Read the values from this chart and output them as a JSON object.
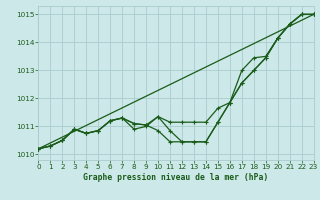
{
  "title": "Graphe pression niveau de la mer (hPa)",
  "bg_color": "#cce8e8",
  "grid_color": "#aacccc",
  "line_color": "#1a5c1a",
  "xlim": [
    0,
    23
  ],
  "ylim": [
    1009.8,
    1015.3
  ],
  "yticks": [
    1010,
    1011,
    1012,
    1013,
    1014,
    1015
  ],
  "xticks": [
    0,
    1,
    2,
    3,
    4,
    5,
    6,
    7,
    8,
    9,
    10,
    11,
    12,
    13,
    14,
    15,
    16,
    17,
    18,
    19,
    20,
    21,
    22,
    23
  ],
  "straight_line_x": [
    0,
    23
  ],
  "straight_line_y": [
    1010.2,
    1015.0
  ],
  "line_a_x": [
    0,
    1,
    2,
    3,
    4,
    5,
    6,
    7,
    8,
    9,
    10,
    11,
    12,
    13,
    14,
    15,
    16,
    17,
    18,
    19,
    20,
    21,
    22,
    23
  ],
  "line_a_y": [
    1010.2,
    1010.3,
    1010.5,
    1010.9,
    1010.75,
    1010.85,
    1011.2,
    1011.3,
    1011.1,
    1011.05,
    1011.35,
    1011.15,
    1011.15,
    1011.15,
    1011.15,
    1011.65,
    1011.85,
    1012.55,
    1013.0,
    1013.45,
    1014.15,
    1014.65,
    1015.0,
    1015.0
  ],
  "line_b_x": [
    0,
    1,
    2,
    3,
    4,
    5,
    6,
    7,
    8,
    9,
    10,
    11,
    12,
    13,
    14,
    15,
    16,
    17,
    18,
    19,
    20,
    21,
    22,
    23
  ],
  "line_b_y": [
    1010.2,
    1010.3,
    1010.5,
    1010.9,
    1010.75,
    1010.85,
    1011.2,
    1011.3,
    1011.1,
    1011.05,
    1010.85,
    1010.45,
    1010.45,
    1010.45,
    1010.45,
    1011.15,
    1011.85,
    1012.55,
    1013.0,
    1013.45,
    1014.15,
    1014.65,
    1015.0,
    1015.0
  ],
  "line_c_x": [
    0,
    1,
    2,
    3,
    4,
    5,
    6,
    7,
    8,
    9,
    10,
    11,
    12,
    13,
    14,
    15,
    16,
    17,
    18,
    19,
    20,
    21,
    22,
    23
  ],
  "line_c_y": [
    1010.2,
    1010.3,
    1010.5,
    1010.9,
    1010.75,
    1010.85,
    1011.2,
    1011.3,
    1010.9,
    1011.0,
    1011.35,
    1010.85,
    1010.45,
    1010.45,
    1010.45,
    1011.15,
    1011.85,
    1013.0,
    1013.45,
    1013.5,
    1014.15,
    1014.65,
    1015.0,
    1015.0
  ]
}
